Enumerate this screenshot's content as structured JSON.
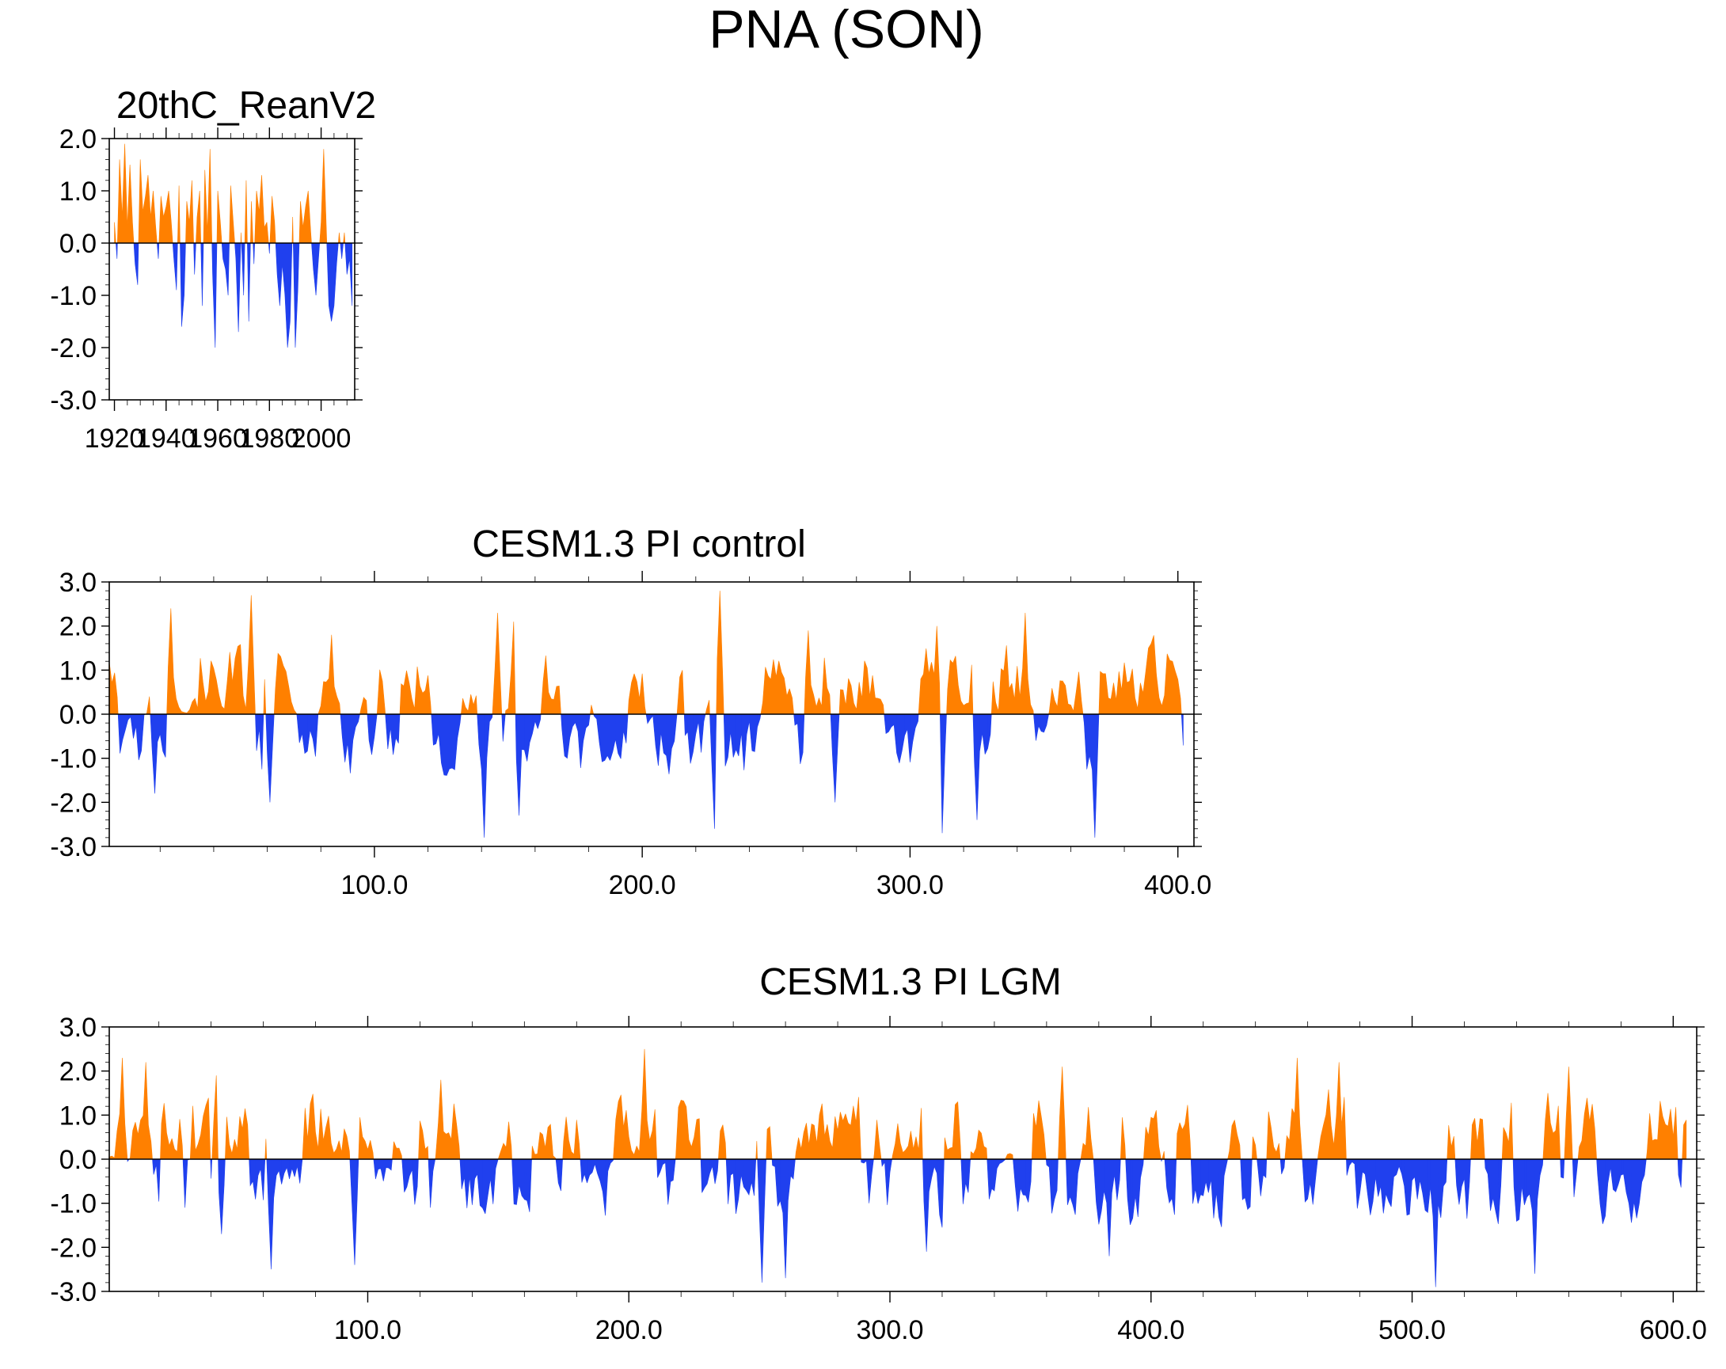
{
  "figure": {
    "title": "PNA (SON)"
  },
  "colors": {
    "positive": "#ff8000",
    "negative": "#2040ee",
    "frame": "#000000"
  },
  "chart_data": [
    {
      "type": "area",
      "title": "20thC_ReanV2",
      "x_start": 1920,
      "x_end": 2012,
      "xlim": [
        1918,
        2013
      ],
      "ylim": [
        -3.0,
        2.0
      ],
      "yticks": [
        2.0,
        1.0,
        0.0,
        -1.0,
        -2.0,
        -3.0
      ],
      "ytick_labels": [
        "2.0",
        "1.0",
        "0.0",
        "-1.0",
        "-2.0",
        "-3.0"
      ],
      "xticks": [
        1920,
        1940,
        1960,
        1980,
        2000
      ],
      "xtick_labels": [
        "1920",
        "1940",
        "1960",
        "1980",
        "2000"
      ],
      "values": [
        0.4,
        -0.3,
        1.6,
        0.5,
        1.9,
        0.3,
        1.5,
        0.4,
        -0.4,
        -0.8,
        1.6,
        0.6,
        0.9,
        1.3,
        0.5,
        1.0,
        0.3,
        -0.3,
        0.9,
        0.5,
        0.7,
        1.0,
        0.4,
        -0.3,
        -0.9,
        1.1,
        -1.6,
        -1.0,
        0.8,
        0.4,
        1.2,
        -0.6,
        0.5,
        1.0,
        -1.2,
        1.4,
        0.2,
        1.8,
        -0.6,
        -2.0,
        1.0,
        0.4,
        -0.3,
        -0.5,
        -1.0,
        1.1,
        0.4,
        -0.3,
        -1.7,
        0.2,
        -1.0,
        1.2,
        -1.5,
        0.8,
        -0.4,
        1.0,
        0.6,
        1.3,
        0.3,
        0.4,
        -0.2,
        0.9,
        0.4,
        -0.6,
        -1.2,
        -0.4,
        -1.0,
        -2.0,
        -1.5,
        0.5,
        -2.0,
        -0.9,
        0.8,
        0.3,
        0.7,
        1.0,
        0.2,
        -0.5,
        -1.0,
        -0.3,
        0.4,
        1.8,
        0.3,
        -1.2,
        -1.5,
        -1.2,
        -0.4,
        0.2,
        -0.3,
        0.2,
        -0.6,
        -0.3,
        -1.2
      ]
    },
    {
      "type": "area",
      "title": "CESM1.3 PI control",
      "n": 402,
      "xlim": [
        1,
        406
      ],
      "ylim": [
        -3.0,
        3.0
      ],
      "yticks": [
        3.0,
        2.0,
        1.0,
        0.0,
        -1.0,
        -2.0,
        -3.0
      ],
      "ytick_labels": [
        "3.0",
        "2.0",
        "1.0",
        "0.0",
        "-1.0",
        "-2.0",
        "-3.0"
      ],
      "xticks": [
        100,
        200,
        300,
        400
      ],
      "xtick_labels": [
        "100.0",
        "200.0",
        "300.0",
        "400.0"
      ],
      "seed": 101,
      "peaks": [
        {
          "x": 24,
          "v": 2.4
        },
        {
          "x": 54,
          "v": 2.7
        },
        {
          "x": 141,
          "v": -2.8
        },
        {
          "x": 146,
          "v": 2.3
        },
        {
          "x": 227,
          "v": -2.6
        },
        {
          "x": 229,
          "v": 2.8
        },
        {
          "x": 312,
          "v": -2.7
        },
        {
          "x": 310,
          "v": 2.0
        },
        {
          "x": 343,
          "v": 2.3
        },
        {
          "x": 369,
          "v": -2.8
        },
        {
          "x": 18,
          "v": -1.8
        },
        {
          "x": 61,
          "v": -2.0
        },
        {
          "x": 84,
          "v": 1.8
        },
        {
          "x": 152,
          "v": 2.1
        },
        {
          "x": 154,
          "v": -2.3
        },
        {
          "x": 262,
          "v": 1.9
        },
        {
          "x": 325,
          "v": -2.4
        },
        {
          "x": 272,
          "v": -2.0
        }
      ]
    },
    {
      "type": "area",
      "title": "CESM1.3 PI LGM",
      "n": 605,
      "xlim": [
        1,
        609
      ],
      "ylim": [
        -3.0,
        3.0
      ],
      "yticks": [
        3.0,
        2.0,
        1.0,
        0.0,
        -1.0,
        -2.0,
        -3.0
      ],
      "ytick_labels": [
        "3.0",
        "2.0",
        "1.0",
        "0.0",
        "-1.0",
        "-2.0",
        "-3.0"
      ],
      "xticks": [
        100,
        200,
        300,
        400,
        500,
        600
      ],
      "xtick_labels": [
        "100.0",
        "200.0",
        "300.0",
        "400.0",
        "500.0",
        "600.0"
      ],
      "seed": 202,
      "peaks": [
        {
          "x": 206,
          "v": 2.5
        },
        {
          "x": 509,
          "v": -2.9
        },
        {
          "x": 251,
          "v": -2.8
        },
        {
          "x": 260,
          "v": -2.7
        },
        {
          "x": 366,
          "v": 2.1
        },
        {
          "x": 456,
          "v": 2.3
        },
        {
          "x": 472,
          "v": 2.2
        },
        {
          "x": 560,
          "v": 2.1
        },
        {
          "x": 63,
          "v": -2.5
        },
        {
          "x": 95,
          "v": -2.4
        },
        {
          "x": 547,
          "v": -2.6
        },
        {
          "x": 314,
          "v": -2.1
        },
        {
          "x": 6,
          "v": 2.3
        },
        {
          "x": 42,
          "v": 1.9
        },
        {
          "x": 128,
          "v": 1.8
        },
        {
          "x": 15,
          "v": 2.2
        },
        {
          "x": 384,
          "v": -2.2
        },
        {
          "x": 44,
          "v": -1.7
        }
      ]
    }
  ]
}
